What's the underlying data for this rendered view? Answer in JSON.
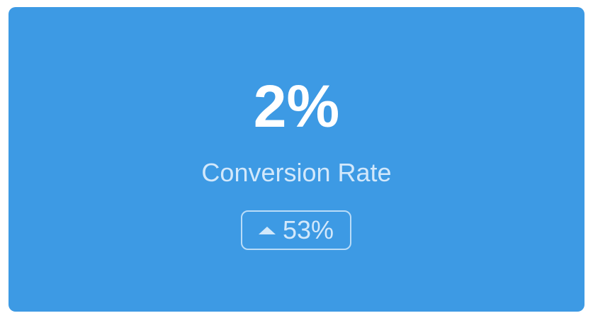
{
  "metric": {
    "value": "2%",
    "label": "Conversion Rate",
    "change": {
      "icon": "triangle-up-icon",
      "value": "53%"
    }
  },
  "colors": {
    "card_background": "#3d9ae4",
    "text_primary": "#ffffff",
    "text_secondary": "#d2e8fb"
  }
}
